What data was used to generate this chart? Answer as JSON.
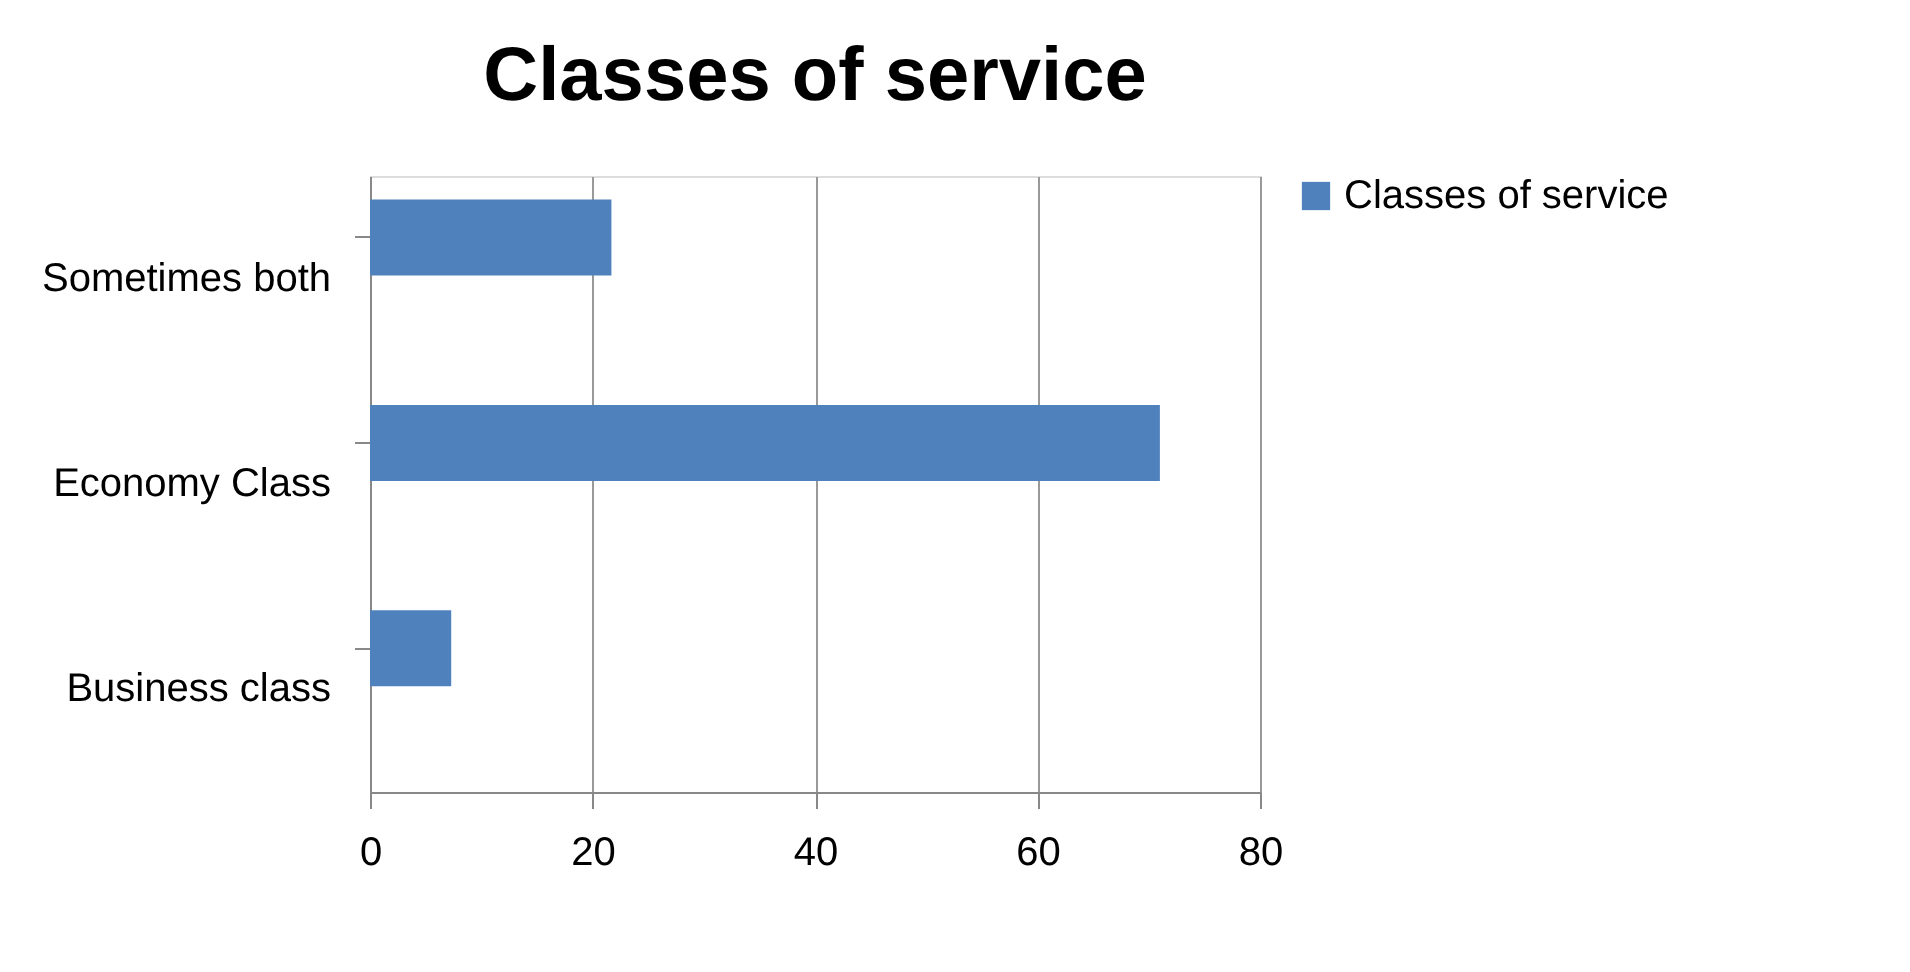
{
  "chart_data": {
    "type": "bar",
    "orientation": "horizontal",
    "title": "Classes of service",
    "categories": [
      "Sometimes both",
      "Economy Class",
      "Business class"
    ],
    "series": [
      {
        "name": "Classes of service",
        "color": "#4f81bd",
        "values": [
          21.7,
          71,
          7.3
        ]
      }
    ],
    "xlim": [
      0,
      80
    ],
    "xticks": [
      0,
      20,
      40,
      60,
      80
    ],
    "grid": "x",
    "legend": "right"
  }
}
